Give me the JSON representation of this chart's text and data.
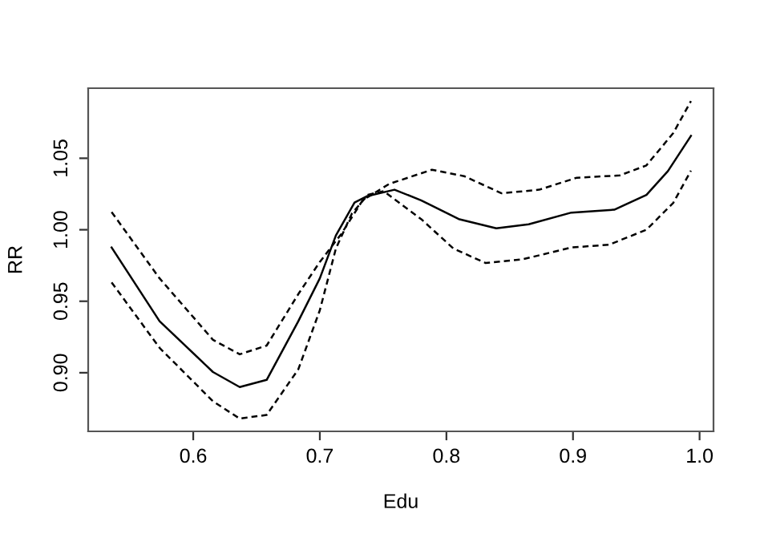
{
  "chart_data": {
    "type": "line",
    "xlabel": "Edu",
    "ylabel": "RR",
    "xlim": [
      0.517,
      1.011
    ],
    "ylim": [
      0.859,
      1.099
    ],
    "xticks": [
      {
        "value": 0.6,
        "label": "0.6"
      },
      {
        "value": 0.7,
        "label": "0.7"
      },
      {
        "value": 0.8,
        "label": "0.8"
      },
      {
        "value": 0.9,
        "label": "0.9"
      },
      {
        "value": 1.0,
        "label": "1.0"
      }
    ],
    "yticks": [
      {
        "value": 0.9,
        "label": "0.90"
      },
      {
        "value": 0.95,
        "label": "0.95"
      },
      {
        "value": 1.0,
        "label": "1.00"
      },
      {
        "value": 1.05,
        "label": "1.05"
      }
    ],
    "grid": false,
    "legend": false,
    "marker": "none",
    "series": [
      {
        "color": "#000000",
        "line_style": "solid",
        "x": [
          0.5355,
          0.5734,
          0.6156,
          0.6367,
          0.658,
          0.683,
          0.7,
          0.7127,
          0.7274,
          0.7377,
          0.759,
          0.78,
          0.8097,
          0.8394,
          0.865,
          0.8987,
          0.9326,
          0.958,
          0.975,
          0.9932
        ],
        "values": [
          0.9876,
          0.936,
          0.9005,
          0.89,
          0.895,
          0.936,
          0.966,
          0.996,
          1.019,
          1.0236,
          1.028,
          1.0206,
          1.0075,
          1.001,
          1.0038,
          1.012,
          1.014,
          1.0244,
          1.041,
          1.0657
        ]
      },
      {
        "color": "#000000",
        "line_style": "dashed",
        "x": [
          0.5355,
          0.5734,
          0.6156,
          0.6367,
          0.658,
          0.683,
          0.7,
          0.7169,
          0.7338,
          0.7547,
          0.7886,
          0.814,
          0.8436,
          0.8733,
          0.903,
          0.9369,
          0.958,
          0.9792,
          0.9932
        ],
        "values": [
          1.0124,
          0.966,
          0.923,
          0.9129,
          0.919,
          0.955,
          0.9775,
          0.997,
          1.0206,
          1.032,
          1.042,
          1.0375,
          1.0255,
          1.028,
          1.0364,
          1.038,
          1.045,
          1.0676,
          1.09
        ]
      },
      {
        "color": "#000000",
        "line_style": "dashed",
        "x": [
          0.5355,
          0.5734,
          0.6156,
          0.6367,
          0.658,
          0.683,
          0.7,
          0.7127,
          0.7253,
          0.738,
          0.7504,
          0.78,
          0.8055,
          0.831,
          0.8606,
          0.8987,
          0.9284,
          0.958,
          0.9792,
          0.9932
        ],
        "values": [
          0.9632,
          0.9174,
          0.88,
          0.8679,
          0.8705,
          0.9024,
          0.9437,
          0.9869,
          1.0113,
          1.0244,
          1.027,
          1.0075,
          0.9869,
          0.9767,
          0.9794,
          0.9876,
          0.9895,
          1.0,
          1.0188,
          1.0413
        ]
      }
    ]
  }
}
